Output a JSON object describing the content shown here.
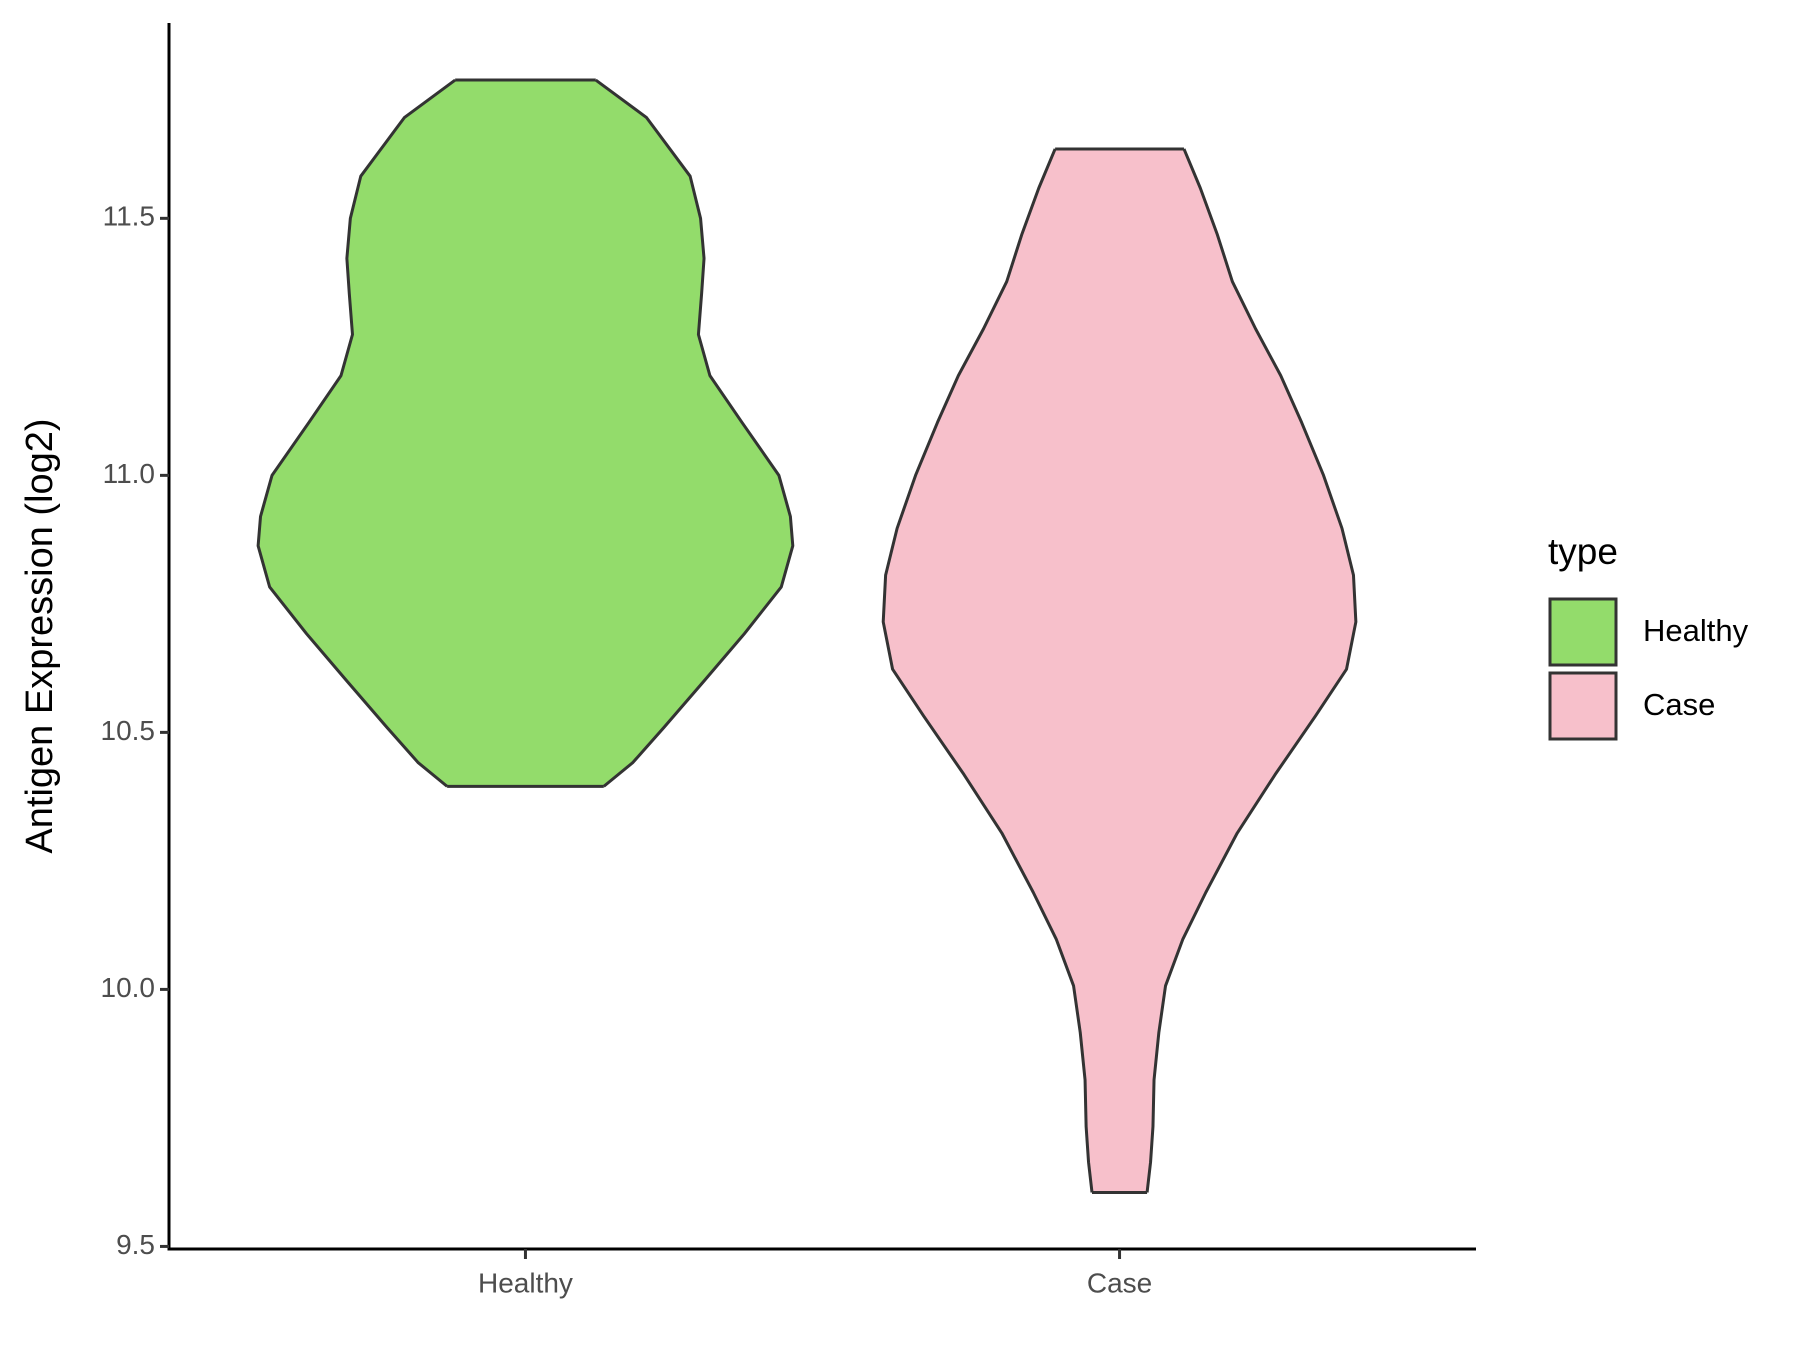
{
  "chart_data": {
    "type": "violin",
    "y_label": "Antigen Expression (log2)",
    "categories": [
      "Healthy",
      "Case"
    ],
    "legend_title": "type",
    "legend_position": "right",
    "ylim": [
      9.495,
      11.88
    ],
    "yticks": [
      {
        "value": 9.5,
        "label": "9.5"
      },
      {
        "value": 10,
        "label": "10.0"
      },
      {
        "value": 10.5,
        "label": "10.5"
      },
      {
        "value": 11,
        "label": "11.0"
      },
      {
        "value": 11.5,
        "label": "11.5"
      }
    ],
    "series": [
      {
        "name": "Healthy",
        "color": "#93dc6b",
        "y": [
          11.769,
          11.696,
          11.582,
          11.5,
          11.422,
          11.354,
          11.274,
          11.194,
          11.103,
          11.0,
          10.92,
          10.863,
          10.783,
          10.692,
          10.6,
          10.509,
          10.441,
          10.395
        ],
        "width": [
          0.263,
          0.453,
          0.616,
          0.655,
          0.668,
          0.659,
          0.647,
          0.69,
          0.81,
          0.948,
          0.991,
          1,
          0.957,
          0.819,
          0.668,
          0.517,
          0.401,
          0.293
        ]
      },
      {
        "name": "Case",
        "color": "#f7c0cb",
        "y": [
          11.635,
          11.559,
          11.468,
          11.377,
          11.285,
          11.194,
          11.103,
          11.0,
          10.897,
          10.806,
          10.715,
          10.623,
          10.532,
          10.418,
          10.304,
          10.189,
          10.098,
          10.007,
          9.916,
          9.824,
          9.733,
          9.664,
          9.605
        ],
        "width": [
          0.241,
          0.302,
          0.366,
          0.422,
          0.509,
          0.603,
          0.681,
          0.763,
          0.832,
          0.875,
          0.884,
          0.849,
          0.733,
          0.582,
          0.44,
          0.323,
          0.237,
          0.172,
          0.147,
          0.129,
          0.125,
          0.116,
          0.103
        ]
      }
    ]
  }
}
